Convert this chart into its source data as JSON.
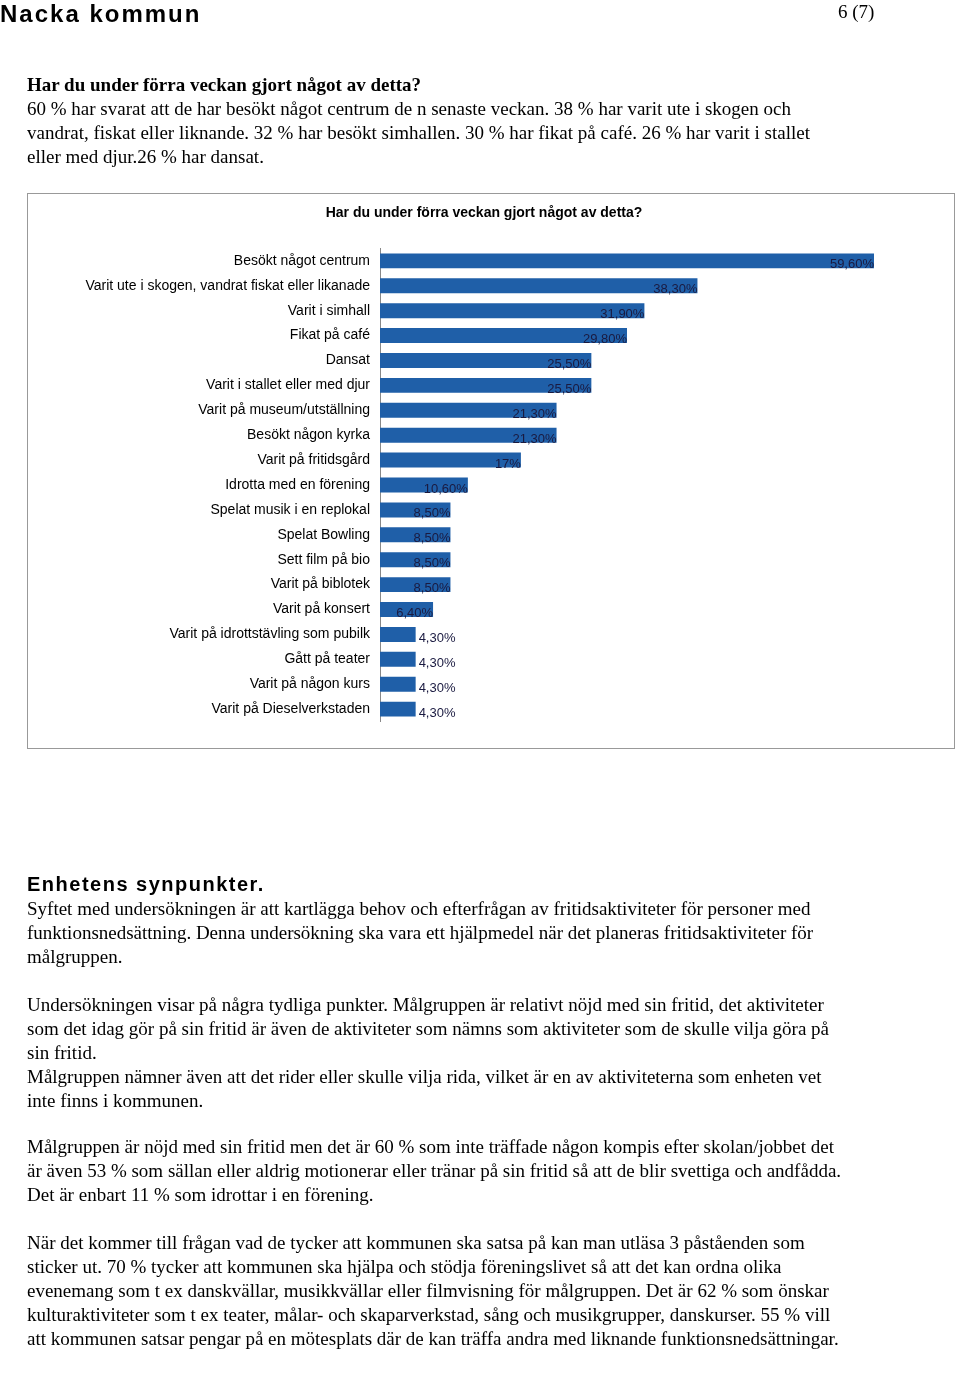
{
  "chart_data": {
    "type": "bar",
    "orientation": "horizontal",
    "title": "Har du under förra veckan gjort något av detta?",
    "categories": [
      "Besökt något centrum",
      "Varit ute i skogen, vandrat fiskat eller likanade",
      "Varit i simhall",
      "Fikat på café",
      "Dansat",
      "Varit i stallet eller med djur",
      "Varit på museum/utställning",
      "Besökt någon kyrka",
      "Varit på fritidsgård",
      "Idrotta med en förening",
      "Spelat musik i en replokal",
      "Spelat Bowling",
      "Sett film på bio",
      "Varit på biblotek",
      "Varit på konsert",
      "Varit på idrottstävling som pubilk",
      "Gått på teater",
      "Varit på någon kurs",
      "Varit på Dieselverkstaden"
    ],
    "values": [
      59.6,
      38.3,
      31.9,
      29.8,
      25.5,
      25.5,
      21.3,
      21.3,
      17,
      10.6,
      8.5,
      8.5,
      8.5,
      8.5,
      6.4,
      4.3,
      4.3,
      4.3,
      4.3
    ],
    "value_labels": [
      "59,60%",
      "38,30%",
      "31,90%",
      "29,80%",
      "25,50%",
      "25,50%",
      "21,30%",
      "21,30%",
      "17%",
      "10,60%",
      "8,50%",
      "8,50%",
      "8,50%",
      "8,50%",
      "6,40%",
      "4,30%",
      "4,30%",
      "4,30%",
      "4,30%"
    ],
    "color": "#1f5fa8",
    "legend": false,
    "annotations": [
      "Nacka kommun",
      "6 (7)",
      "Har du under förra veckan gjort något av detta?",
      "60 % har svarat att de har besökt något centrum de n senaste veckan. 38 % har varit ute i skogen och vandrat, fiskat eller liknande. 32 % har besökt simhallen. 30 % har fikat på café. 26 % har varit i stallet eller med djur.26 % har dansat.",
      "Enhetens synpunkter.",
      "Syftet med undersökningen är att kartlägga behov och efterfrågan av fritidsaktiviteter för personer med funktionsnedsättning. Denna undersökning ska vara ett hjälpmedel när det planeras fritidsaktiviteter för målgruppen.",
      "Undersökningen visar på några tydliga punkter. Målgruppen är relativt nöjd med sin fritid, det aktiviteter som det idag gör på sin fritid är även de aktiviteter som nämns som aktiviteter som de skulle vilja göra på sin fritid.",
      "Målgruppen nämner även att det rider eller skulle vilja rida, vilket är en av aktiviteterna som enheten vet inte finns i kommunen.",
      "Målgruppen är nöjd med sin fritid men det är 60 % som inte träffade någon kompis efter skolan/jobbet det är även 53 % som sällan eller aldrig motionerar eller tränar på sin fritid så att de blir svettiga och andfådda. Det är enbart 11 % som idrottar i en förening.",
      "När det kommer till frågan vad de tycker att kommunen ska satsa på kan man utläsa 3 påståenden som sticker ut. 70 % tycker att kommunen ska hjälpa och stödja föreningslivet så att det kan ordna olika evenemang som t ex danskvällar, musikkvällar eller filmvisning för målgruppen. Det är 62 % som önskar kulturaktiviteter som t ex teater, målar- och skaparverkstad, sång och musikgrupper, danskurser. 55 % vill att kommunen satsar pengar på en mötesplats där de kan träffa andra med liknande funktionsnedsättningar."
    ]
  }
}
